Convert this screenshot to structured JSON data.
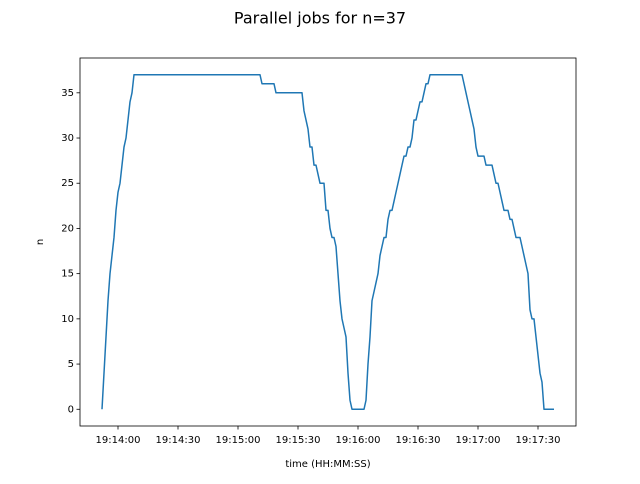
{
  "chart_data": {
    "type": "line",
    "title": "Parallel jobs for n=37",
    "xlabel": "time (HH:MM:SS)",
    "ylabel": "n",
    "x": [
      "19:13:52",
      "19:13:53",
      "19:13:54",
      "19:13:55",
      "19:13:56",
      "19:13:57",
      "19:13:58",
      "19:13:59",
      "19:14:00",
      "19:14:01",
      "19:14:02",
      "19:14:03",
      "19:14:04",
      "19:14:05",
      "19:14:06",
      "19:14:07",
      "19:14:08",
      "19:15:11",
      "19:15:12",
      "19:15:18",
      "19:15:19",
      "19:15:32",
      "19:15:33",
      "19:15:34",
      "19:15:35",
      "19:15:36",
      "19:15:37",
      "19:15:38",
      "19:15:39",
      "19:15:40",
      "19:15:41",
      "19:15:43",
      "19:15:44",
      "19:15:45",
      "19:15:46",
      "19:15:47",
      "19:15:48",
      "19:15:49",
      "19:15:50",
      "19:15:51",
      "19:15:52",
      "19:15:53",
      "19:15:54",
      "19:15:55",
      "19:15:56",
      "19:15:57",
      "19:16:03",
      "19:16:04",
      "19:16:05",
      "19:16:06",
      "19:16:07",
      "19:16:08",
      "19:16:09",
      "19:16:10",
      "19:16:11",
      "19:16:12",
      "19:16:13",
      "19:16:14",
      "19:16:15",
      "19:16:16",
      "19:16:17",
      "19:16:18",
      "19:16:19",
      "19:16:20",
      "19:16:21",
      "19:16:22",
      "19:16:23",
      "19:16:24",
      "19:16:25",
      "19:16:26",
      "19:16:27",
      "19:16:28",
      "19:16:29",
      "19:16:30",
      "19:16:31",
      "19:16:32",
      "19:16:33",
      "19:16:34",
      "19:16:35",
      "19:16:36",
      "19:16:52",
      "19:16:53",
      "19:16:54",
      "19:16:55",
      "19:16:56",
      "19:16:57",
      "19:16:58",
      "19:16:59",
      "19:17:00",
      "19:17:03",
      "19:17:04",
      "19:17:07",
      "19:17:08",
      "19:17:09",
      "19:17:10",
      "19:17:11",
      "19:17:12",
      "19:17:13",
      "19:17:15",
      "19:17:16",
      "19:17:17",
      "19:17:18",
      "19:17:19",
      "19:17:21",
      "19:17:22",
      "19:17:23",
      "19:17:24",
      "19:17:25",
      "19:17:26",
      "19:17:27",
      "19:17:28",
      "19:17:29",
      "19:17:30",
      "19:17:31",
      "19:17:32",
      "19:17:33",
      "19:17:38"
    ],
    "series": [
      {
        "name": "n",
        "color": "#1f77b4",
        "values": [
          0,
          4,
          8,
          12,
          15,
          17,
          19,
          22,
          24,
          25,
          27,
          29,
          30,
          32,
          34,
          35,
          37,
          37,
          36,
          36,
          35,
          35,
          33,
          32,
          31,
          29,
          29,
          27,
          27,
          26,
          25,
          25,
          22,
          22,
          20,
          19,
          19,
          18,
          15,
          12,
          10,
          9,
          8,
          4,
          1,
          0,
          0,
          1,
          5,
          8,
          12,
          13,
          14,
          15,
          17,
          18,
          19,
          19,
          21,
          22,
          22,
          23,
          24,
          25,
          26,
          27,
          28,
          28,
          29,
          29,
          30,
          32,
          32,
          33,
          34,
          34,
          35,
          36,
          36,
          37,
          37,
          36,
          35,
          34,
          33,
          32,
          31,
          29,
          28,
          28,
          27,
          27,
          26,
          25,
          25,
          24,
          23,
          22,
          22,
          21,
          21,
          20,
          19,
          19,
          18,
          17,
          16,
          15,
          11,
          10,
          10,
          8,
          6,
          4,
          3,
          0,
          0
        ]
      }
    ],
    "xlim": [
      "19:13:41",
      "19:17:49"
    ],
    "xticks": [
      "19:14:00",
      "19:14:30",
      "19:15:00",
      "19:15:30",
      "19:16:00",
      "19:16:30",
      "19:17:00",
      "19:17:30"
    ],
    "ylim": [
      -1.85,
      38.85
    ],
    "yticks": [
      0,
      5,
      10,
      15,
      20,
      25,
      30,
      35
    ]
  }
}
